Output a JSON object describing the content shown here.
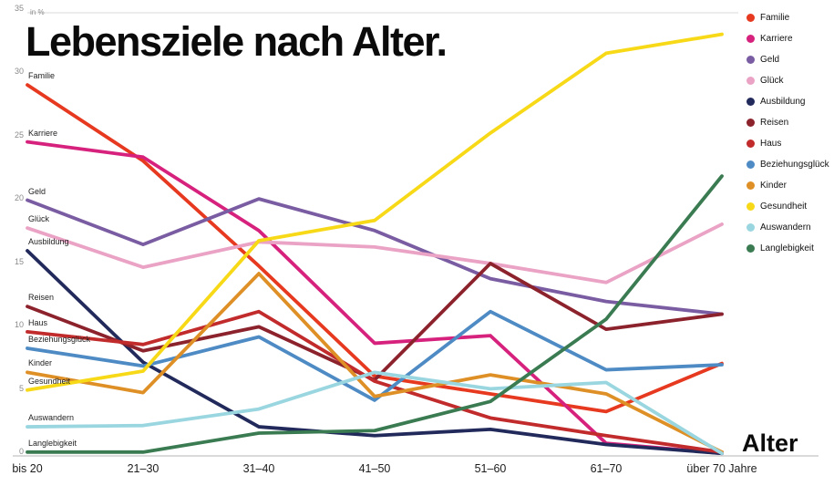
{
  "title": "Lebensziele nach Alter.",
  "unit_label": "in %",
  "x_axis_title": "Alter",
  "chart_data": {
    "type": "line",
    "title": "Lebensziele nach Alter.",
    "ylabel": "in %",
    "xlabel": "Alter",
    "ylim": [
      0,
      35
    ],
    "yticks": [
      0,
      5,
      10,
      15,
      20,
      25,
      30,
      35
    ],
    "grid": false,
    "legend_position": "top-right",
    "categories": [
      "bis 20",
      "21–30",
      "31–40",
      "41–50",
      "51–60",
      "61–70",
      "über 70 Jahre"
    ],
    "series": [
      {
        "name": "Familie",
        "color": "#e6391f",
        "values": [
          29.3,
          23.3,
          15.0,
          6.3,
          4.9,
          3.5,
          7.3
        ]
      },
      {
        "name": "Karriere",
        "color": "#d6217d",
        "values": [
          24.8,
          23.6,
          17.8,
          8.9,
          9.5,
          1.0,
          0.2
        ]
      },
      {
        "name": "Geld",
        "color": "#7a5ca2",
        "values": [
          20.2,
          16.7,
          20.3,
          17.8,
          14.0,
          12.2,
          11.2
        ]
      },
      {
        "name": "Glück",
        "color": "#eaa3c5",
        "values": [
          18.0,
          14.9,
          16.9,
          16.5,
          15.2,
          13.7,
          18.3
        ]
      },
      {
        "name": "Ausbildung",
        "color": "#222a5c",
        "values": [
          16.2,
          7.4,
          2.3,
          1.6,
          2.1,
          0.9,
          0.2
        ]
      },
      {
        "name": "Reisen",
        "color": "#8c222c",
        "values": [
          11.8,
          8.3,
          10.2,
          6.0,
          15.2,
          10.0,
          11.2
        ]
      },
      {
        "name": "Haus",
        "color": "#c22b2b",
        "values": [
          9.8,
          8.8,
          11.4,
          5.9,
          3.0,
          1.6,
          0.3
        ]
      },
      {
        "name": "Beziehungsglück",
        "color": "#4e8bc4",
        "values": [
          8.5,
          7.1,
          9.4,
          4.4,
          11.4,
          6.8,
          7.2
        ]
      },
      {
        "name": "Kinder",
        "color": "#de9026",
        "values": [
          6.6,
          5.0,
          14.4,
          4.7,
          6.4,
          4.9,
          0.3
        ]
      },
      {
        "name": "Gesundheit",
        "color": "#f7d917",
        "values": [
          5.2,
          6.7,
          17.0,
          18.6,
          25.5,
          31.8,
          33.3
        ]
      },
      {
        "name": "Auswandern",
        "color": "#9ad6e0",
        "values": [
          2.3,
          2.4,
          3.7,
          6.6,
          5.3,
          5.8,
          0.2
        ]
      },
      {
        "name": "Langlebigkeit",
        "color": "#3a7b52",
        "values": [
          0.3,
          0.3,
          1.8,
          2.0,
          4.3,
          10.8,
          22.1
        ]
      }
    ]
  }
}
